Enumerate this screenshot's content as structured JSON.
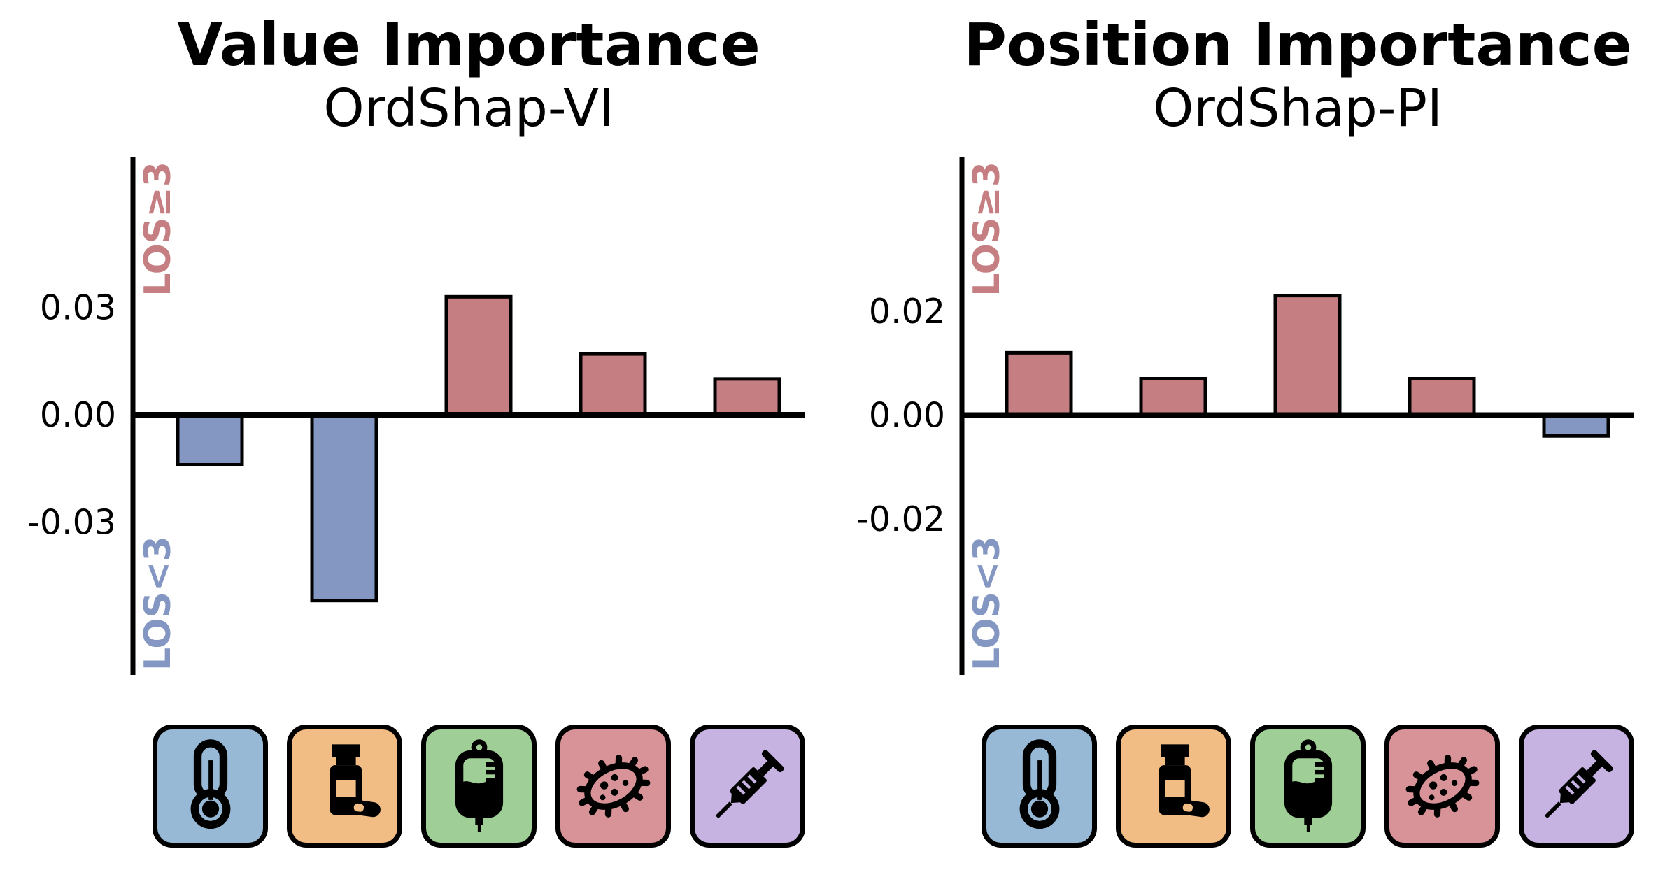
{
  "figure": {
    "description": "Two bar-chart panels showing feature value and position importance for length-of-stay prediction, with clinical feature icons below each chart",
    "group_label_top": "LOS≥3",
    "group_label_bottom": "LOS<3"
  },
  "chart_data": [
    {
      "type": "bar",
      "title": "Value Importance",
      "subtitle": "OrdShap-VI",
      "categories": [
        "thermometer",
        "pill-bottle",
        "iv-bag",
        "microbe",
        "syringe"
      ],
      "values": [
        -0.014,
        -0.052,
        0.033,
        0.017,
        0.01
      ],
      "yticks": [
        {
          "v": 0.03,
          "label": "0.03"
        },
        {
          "v": 0.0,
          "label": "0.00"
        },
        {
          "v": -0.03,
          "label": "-0.03"
        }
      ],
      "ylim": [
        -0.0728,
        0.072
      ],
      "xlabel": "",
      "ylabel": "",
      "ylabel_top": "LOS≥3",
      "ylabel_bottom": "LOS<3",
      "positive_color": "#c57e81",
      "negative_color": "#8496c2",
      "grid": false,
      "legend": false
    },
    {
      "type": "bar",
      "title": "Position Importance",
      "subtitle": "OrdShap-PI",
      "categories": [
        "thermometer",
        "pill-bottle",
        "iv-bag",
        "microbe",
        "syringe"
      ],
      "values": [
        0.012,
        0.007,
        0.023,
        0.007,
        -0.004
      ],
      "yticks": [
        {
          "v": 0.02,
          "label": "0.02"
        },
        {
          "v": 0.0,
          "label": "0.00"
        },
        {
          "v": -0.02,
          "label": "-0.02"
        }
      ],
      "ylim": [
        -0.05,
        0.0496
      ],
      "xlabel": "",
      "ylabel": "",
      "ylabel_top": "LOS≥3",
      "ylabel_bottom": "LOS<3",
      "positive_color": "#c57e81",
      "negative_color": "#8496c2",
      "grid": false,
      "legend": false
    }
  ],
  "icons": {
    "tiles": [
      {
        "name": "thermometer",
        "color": "#97b9d6"
      },
      {
        "name": "pill-bottle",
        "color": "#f2bd85"
      },
      {
        "name": "iv-bag",
        "color": "#9fce96"
      },
      {
        "name": "microbe",
        "color": "#d79397"
      },
      {
        "name": "syringe",
        "color": "#c6b3e2"
      }
    ]
  }
}
